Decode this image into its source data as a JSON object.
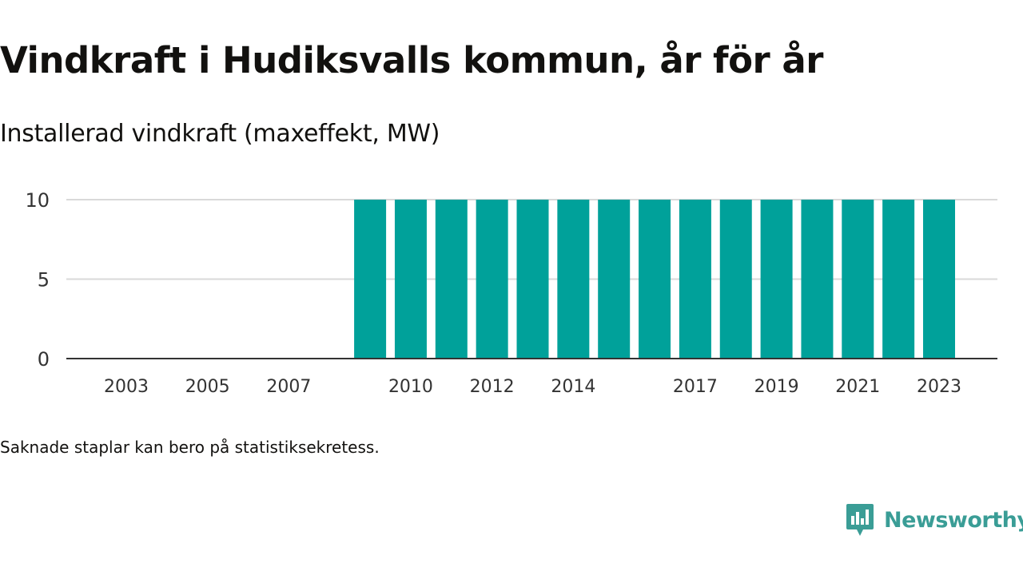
{
  "header": {
    "title": "Vindkraft i Hudiksvalls kommun, år för år",
    "subtitle": "Installerad vindkraft (maxeffekt, MW)"
  },
  "footer": {
    "note": "Saknade staplar kan bero på statistiksekretess.",
    "brand": "Newsworthy"
  },
  "colors": {
    "bar": "#00a19a",
    "grid": "#d9d9d9",
    "axis": "#333333",
    "text": "#111111",
    "brand": "#3a9d96"
  },
  "chart_data": {
    "type": "bar",
    "title": "Vindkraft i Hudiksvalls kommun, år för år",
    "subtitle": "Installerad vindkraft (maxeffekt, MW)",
    "xlabel": "",
    "ylabel": "",
    "categories": [
      "2002",
      "2003",
      "2004",
      "2005",
      "2006",
      "2007",
      "2008",
      "2009",
      "2010",
      "2011",
      "2012",
      "2013",
      "2014",
      "2015",
      "2016",
      "2017",
      "2018",
      "2019",
      "2020",
      "2021",
      "2022",
      "2023"
    ],
    "values": [
      null,
      null,
      null,
      null,
      null,
      null,
      null,
      10,
      10,
      10,
      10,
      10,
      10,
      10,
      10,
      10,
      10,
      10,
      10,
      10,
      10,
      10
    ],
    "x_tick_labels": [
      "2003",
      "2005",
      "2007",
      "2010",
      "2012",
      "2014",
      "2017",
      "2019",
      "2021",
      "2023"
    ],
    "y_ticks": [
      0,
      5,
      10
    ],
    "ylim": [
      0,
      10
    ],
    "grid": true
  }
}
